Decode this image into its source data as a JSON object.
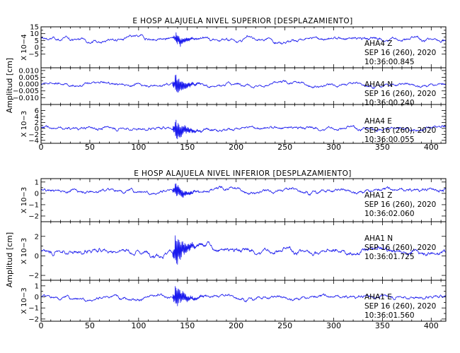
{
  "chart_data": {
    "type": "line",
    "x_ticks": [
      "0",
      "50",
      "100",
      "150",
      "200",
      "250",
      "300",
      "350",
      "400"
    ],
    "xlim": [
      0,
      415
    ],
    "trace_color": "#1a1aee",
    "groups": [
      {
        "title": "E HOSP ALAJUELA NIVEL SUPERIOR [DESPLAZAMIENTO]",
        "ylabel": "Amplitud [cm]",
        "panels": [
          {
            "scale_label": "X 10−4",
            "ylim": [
              -15,
              15
            ],
            "y_ticks": [
              "−5",
              "0",
              "5",
              "10",
              "15"
            ],
            "station": "AHA4",
            "component": "Z",
            "date": "SEP 16 (260), 2020",
            "time": "10:36:00.845",
            "event_x": 138,
            "event_amp": 0.5,
            "baseline_mid": 6
          },
          {
            "scale_label": "",
            "ylim": [
              -0.015,
              0.012
            ],
            "y_ticks": [
              "−0.010",
              "−0.005",
              "0.000",
              "0.005",
              "0.010"
            ],
            "station": "AHA4",
            "component": "N",
            "date": "SEP 16 (260), 2020",
            "time": "10:36:00.240",
            "event_x": 137,
            "event_amp": 1.0,
            "baseline_mid": 0
          },
          {
            "scale_label": "X 10−3",
            "ylim": [
              -5,
              8
            ],
            "y_ticks": [
              "−4",
              "−2",
              "0",
              "2",
              "4",
              "6"
            ],
            "station": "AHA4",
            "component": "E",
            "date": "SEP 16 (260), 2020",
            "time": "10:36:00.055",
            "event_x": 137,
            "event_amp": 1.0,
            "baseline_mid": 0
          }
        ]
      },
      {
        "title": "E HOSP ALAJUELA NIVEL INFERIOR [DESPLAZAMIENTO]",
        "ylabel": "Amplitud [cm]",
        "panels": [
          {
            "scale_label": "X 10−3",
            "ylim": [
              -2.5,
              1.3
            ],
            "y_ticks": [
              "−2",
              "−1",
              "0",
              "1"
            ],
            "station": "AHA1",
            "component": "Z",
            "date": "SEP 16 (260), 2020",
            "time": "10:36:02.060",
            "event_x": 137,
            "event_amp": 0.6,
            "baseline_mid": 0.3
          },
          {
            "scale_label": "X 10−3",
            "ylim": [
              -2.5,
              3.5
            ],
            "y_ticks": [
              "−2",
              "0",
              "2"
            ],
            "station": "AHA1",
            "component": "N",
            "date": "SEP 16 (260), 2020",
            "time": "10:36:01.725",
            "event_x": 137,
            "event_amp": 1.0,
            "baseline_mid": 0.5
          },
          {
            "scale_label": "X 10−3",
            "ylim": [
              -2.2,
              1.5
            ],
            "y_ticks": [
              "−2",
              "−1",
              "0",
              "1"
            ],
            "station": "AHA1",
            "component": "E",
            "date": "SEP 16 (260), 2020",
            "time": "10:36:01.560",
            "event_x": 137,
            "event_amp": 1.0,
            "baseline_mid": 0
          }
        ]
      }
    ]
  }
}
